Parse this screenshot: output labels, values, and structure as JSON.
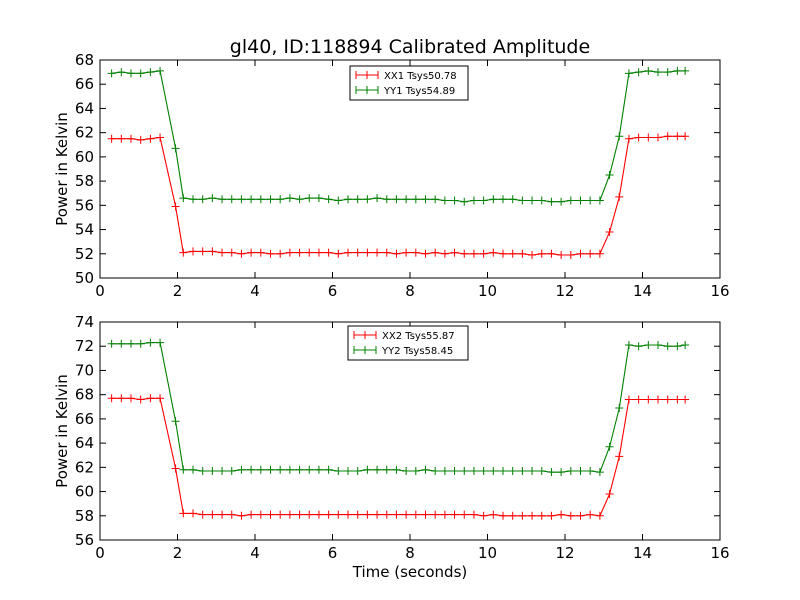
{
  "title": "gl40, ID:118894 Calibrated Amplitude",
  "chart_data": [
    {
      "type": "line",
      "xlim": [
        0,
        16
      ],
      "ylim": [
        50,
        68
      ],
      "xticks": [
        "0",
        "2",
        "4",
        "6",
        "8",
        "10",
        "12",
        "14",
        "16"
      ],
      "yticks": [
        "50",
        "52",
        "54",
        "56",
        "58",
        "60",
        "62",
        "64",
        "66",
        "68"
      ],
      "ylabel": "Power in Kelvin",
      "xlabel": "",
      "grid": false,
      "legend_position": "top-center",
      "x": [
        0.3,
        0.55,
        0.8,
        1.05,
        1.3,
        1.55,
        1.95,
        2.15,
        2.4,
        2.65,
        2.9,
        3.15,
        3.4,
        3.65,
        3.9,
        4.15,
        4.4,
        4.65,
        4.9,
        5.15,
        5.4,
        5.65,
        5.9,
        6.15,
        6.4,
        6.65,
        6.9,
        7.15,
        7.4,
        7.65,
        7.9,
        8.15,
        8.4,
        8.65,
        8.9,
        9.15,
        9.4,
        9.65,
        9.9,
        10.15,
        10.4,
        10.65,
        10.9,
        11.15,
        11.4,
        11.65,
        11.9,
        12.15,
        12.4,
        12.65,
        12.9,
        13.15,
        13.4,
        13.65,
        13.9,
        14.15,
        14.4,
        14.65,
        14.9,
        15.1
      ],
      "series": [
        {
          "name": "XX1 Tsys50.78",
          "color": "#ff0000",
          "values": [
            61.5,
            61.5,
            61.5,
            61.4,
            61.5,
            61.6,
            55.9,
            52.1,
            52.2,
            52.2,
            52.2,
            52.1,
            52.1,
            52.0,
            52.1,
            52.1,
            52.0,
            52.0,
            52.1,
            52.1,
            52.1,
            52.1,
            52.1,
            52.0,
            52.1,
            52.1,
            52.1,
            52.1,
            52.1,
            52.0,
            52.1,
            52.1,
            52.0,
            52.1,
            52.0,
            52.1,
            52.0,
            52.0,
            52.0,
            52.1,
            52.0,
            52.0,
            52.0,
            51.9,
            52.0,
            52.0,
            51.9,
            51.9,
            52.0,
            52.0,
            52.0,
            53.8,
            56.7,
            61.5,
            61.6,
            61.6,
            61.6,
            61.7,
            61.7,
            61.7
          ]
        },
        {
          "name": "YY1 Tsys54.89",
          "color": "#008000",
          "values": [
            66.9,
            67.0,
            66.9,
            66.9,
            67.0,
            67.1,
            60.7,
            56.6,
            56.5,
            56.5,
            56.6,
            56.5,
            56.5,
            56.5,
            56.5,
            56.5,
            56.5,
            56.5,
            56.6,
            56.5,
            56.6,
            56.6,
            56.5,
            56.4,
            56.5,
            56.5,
            56.5,
            56.6,
            56.5,
            56.5,
            56.5,
            56.5,
            56.5,
            56.5,
            56.4,
            56.4,
            56.3,
            56.4,
            56.4,
            56.5,
            56.5,
            56.5,
            56.4,
            56.4,
            56.4,
            56.3,
            56.3,
            56.4,
            56.4,
            56.4,
            56.4,
            58.5,
            61.7,
            66.9,
            67.0,
            67.1,
            67.0,
            67.0,
            67.1,
            67.1
          ]
        }
      ]
    },
    {
      "type": "line",
      "xlim": [
        0,
        16
      ],
      "ylim": [
        56,
        74
      ],
      "xticks": [
        "0",
        "2",
        "4",
        "6",
        "8",
        "10",
        "12",
        "14",
        "16"
      ],
      "yticks": [
        "56",
        "58",
        "60",
        "62",
        "64",
        "66",
        "68",
        "70",
        "72",
        "74"
      ],
      "ylabel": "Power in Kelvin",
      "xlabel": "Time (seconds)",
      "grid": false,
      "legend_position": "top-center",
      "x": [
        0.3,
        0.55,
        0.8,
        1.05,
        1.3,
        1.55,
        1.95,
        2.15,
        2.4,
        2.65,
        2.9,
        3.15,
        3.4,
        3.65,
        3.9,
        4.15,
        4.4,
        4.65,
        4.9,
        5.15,
        5.4,
        5.65,
        5.9,
        6.15,
        6.4,
        6.65,
        6.9,
        7.15,
        7.4,
        7.65,
        7.9,
        8.15,
        8.4,
        8.65,
        8.9,
        9.15,
        9.4,
        9.65,
        9.9,
        10.15,
        10.4,
        10.65,
        10.9,
        11.15,
        11.4,
        11.65,
        11.9,
        12.15,
        12.4,
        12.65,
        12.9,
        13.15,
        13.4,
        13.65,
        13.9,
        14.15,
        14.4,
        14.65,
        14.9,
        15.1
      ],
      "series": [
        {
          "name": "XX2 Tsys55.87",
          "color": "#ff0000",
          "values": [
            67.7,
            67.7,
            67.7,
            67.6,
            67.7,
            67.7,
            61.9,
            58.2,
            58.2,
            58.1,
            58.1,
            58.1,
            58.1,
            58.0,
            58.1,
            58.1,
            58.1,
            58.1,
            58.1,
            58.1,
            58.1,
            58.1,
            58.1,
            58.1,
            58.1,
            58.1,
            58.1,
            58.1,
            58.1,
            58.1,
            58.1,
            58.1,
            58.1,
            58.1,
            58.1,
            58.1,
            58.1,
            58.1,
            58.0,
            58.1,
            58.0,
            58.0,
            58.0,
            58.0,
            58.0,
            58.0,
            58.1,
            58.0,
            58.0,
            58.1,
            58.0,
            59.8,
            62.9,
            67.6,
            67.6,
            67.6,
            67.6,
            67.6,
            67.6,
            67.6
          ]
        },
        {
          "name": "YY2 Tsys58.45",
          "color": "#008000",
          "values": [
            72.2,
            72.2,
            72.2,
            72.2,
            72.3,
            72.3,
            65.8,
            61.8,
            61.8,
            61.7,
            61.7,
            61.7,
            61.7,
            61.8,
            61.8,
            61.8,
            61.8,
            61.8,
            61.8,
            61.8,
            61.8,
            61.8,
            61.8,
            61.7,
            61.7,
            61.7,
            61.8,
            61.8,
            61.8,
            61.8,
            61.7,
            61.7,
            61.8,
            61.7,
            61.7,
            61.7,
            61.7,
            61.7,
            61.7,
            61.7,
            61.7,
            61.7,
            61.7,
            61.7,
            61.7,
            61.6,
            61.6,
            61.7,
            61.7,
            61.7,
            61.6,
            63.7,
            66.9,
            72.1,
            72.0,
            72.1,
            72.1,
            72.0,
            72.0,
            72.1
          ]
        }
      ]
    }
  ]
}
